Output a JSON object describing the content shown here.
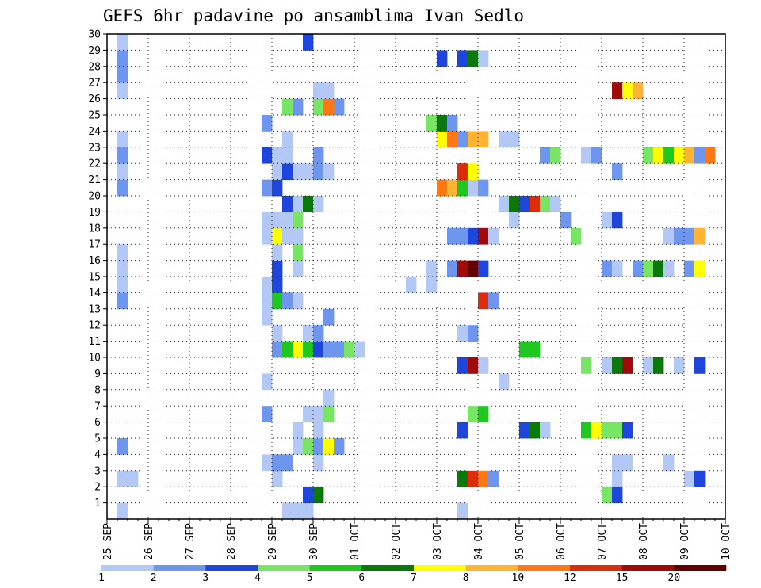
{
  "chart_data": {
    "type": "heatmap",
    "title": "GEFS 6hr padavine po ansamblima Ivan Sedlo",
    "xlabel": "",
    "ylabel": "",
    "x_ticks": [
      "25 SEP",
      "26 SEP",
      "27 SEP",
      "28 SEP",
      "29 SEP",
      "30 SEP",
      "01 OCT",
      "02 OCT",
      "03 OCT",
      "04 OCT",
      "05 OCT",
      "06 OCT",
      "07 OCT",
      "08 OCT",
      "09 OCT",
      "10 OCT"
    ],
    "steps_per_day": 4,
    "y_ticks": [
      1,
      2,
      3,
      4,
      5,
      6,
      7,
      8,
      9,
      10,
      11,
      12,
      13,
      14,
      15,
      16,
      17,
      18,
      19,
      20,
      21,
      22,
      23,
      24,
      25,
      26,
      27,
      28,
      29,
      30
    ],
    "x_range": [
      "25 SEP 00Z",
      "10 OCT 00Z"
    ],
    "y_range": [
      0,
      30
    ],
    "grid": "dotted",
    "legend_position": "bottom",
    "colorbar": {
      "colors": [
        "#b4c8f5",
        "#6e96ee",
        "#1e46dc",
        "#78e664",
        "#1ec81e",
        "#0a780a",
        "#ffff00",
        "#ffb432",
        "#ff7814",
        "#dc2d0a",
        "#a00a0a",
        "#640000"
      ],
      "labels": [
        "1",
        "2",
        "3",
        "4",
        "5",
        "6",
        "7",
        "8",
        "10",
        "12",
        "15",
        "20"
      ]
    },
    "cells": [
      {
        "member": 0,
        "step": 1,
        "cat": 1
      },
      {
        "member": 0,
        "step": 17,
        "cat": 1
      },
      {
        "member": 0,
        "step": 18,
        "cat": 1
      },
      {
        "member": 0,
        "step": 19,
        "cat": 1
      },
      {
        "member": 0,
        "step": 34,
        "cat": 1
      },
      {
        "member": 1,
        "step": 19,
        "cat": 3
      },
      {
        "member": 1,
        "step": 20,
        "cat": 6
      },
      {
        "member": 1,
        "step": 48,
        "cat": 4
      },
      {
        "member": 1,
        "step": 49,
        "cat": 3
      },
      {
        "member": 2,
        "step": 1,
        "cat": 1
      },
      {
        "member": 2,
        "step": 2,
        "cat": 1
      },
      {
        "member": 2,
        "step": 16,
        "cat": 1
      },
      {
        "member": 2,
        "step": 34,
        "cat": 6
      },
      {
        "member": 2,
        "step": 35,
        "cat": 10
      },
      {
        "member": 2,
        "step": 36,
        "cat": 9
      },
      {
        "member": 2,
        "step": 37,
        "cat": 2
      },
      {
        "member": 2,
        "step": 49,
        "cat": 1
      },
      {
        "member": 2,
        "step": 56,
        "cat": 1
      },
      {
        "member": 2,
        "step": 57,
        "cat": 3
      },
      {
        "member": 3,
        "step": 15,
        "cat": 1
      },
      {
        "member": 3,
        "step": 16,
        "cat": 2
      },
      {
        "member": 3,
        "step": 17,
        "cat": 2
      },
      {
        "member": 3,
        "step": 20,
        "cat": 1
      },
      {
        "member": 3,
        "step": 49,
        "cat": 1
      },
      {
        "member": 3,
        "step": 50,
        "cat": 1
      },
      {
        "member": 3,
        "step": 54,
        "cat": 1
      },
      {
        "member": 4,
        "step": 1,
        "cat": 2
      },
      {
        "member": 4,
        "step": 18,
        "cat": 1
      },
      {
        "member": 4,
        "step": 19,
        "cat": 4
      },
      {
        "member": 4,
        "step": 20,
        "cat": 2
      },
      {
        "member": 4,
        "step": 21,
        "cat": 7
      },
      {
        "member": 4,
        "step": 22,
        "cat": 2
      },
      {
        "member": 5,
        "step": 18,
        "cat": 1
      },
      {
        "member": 5,
        "step": 20,
        "cat": 1
      },
      {
        "member": 5,
        "step": 34,
        "cat": 3
      },
      {
        "member": 5,
        "step": 40,
        "cat": 3
      },
      {
        "member": 5,
        "step": 41,
        "cat": 6
      },
      {
        "member": 5,
        "step": 42,
        "cat": 1
      },
      {
        "member": 5,
        "step": 46,
        "cat": 5
      },
      {
        "member": 5,
        "step": 47,
        "cat": 7
      },
      {
        "member": 5,
        "step": 48,
        "cat": 4
      },
      {
        "member": 5,
        "step": 49,
        "cat": 4
      },
      {
        "member": 5,
        "step": 50,
        "cat": 3
      },
      {
        "member": 6,
        "step": 15,
        "cat": 2
      },
      {
        "member": 6,
        "step": 19,
        "cat": 1
      },
      {
        "member": 6,
        "step": 20,
        "cat": 1
      },
      {
        "member": 6,
        "step": 21,
        "cat": 4
      },
      {
        "member": 6,
        "step": 35,
        "cat": 4
      },
      {
        "member": 6,
        "step": 36,
        "cat": 5
      },
      {
        "member": 7,
        "step": 21,
        "cat": 1
      },
      {
        "member": 8,
        "step": 15,
        "cat": 1
      },
      {
        "member": 8,
        "step": 38,
        "cat": 1
      },
      {
        "member": 9,
        "step": 34,
        "cat": 3
      },
      {
        "member": 9,
        "step": 35,
        "cat": 11
      },
      {
        "member": 9,
        "step": 36,
        "cat": 1
      },
      {
        "member": 9,
        "step": 46,
        "cat": 4
      },
      {
        "member": 9,
        "step": 48,
        "cat": 1
      },
      {
        "member": 9,
        "step": 49,
        "cat": 6
      },
      {
        "member": 9,
        "step": 50,
        "cat": 11
      },
      {
        "member": 9,
        "step": 52,
        "cat": 1
      },
      {
        "member": 9,
        "step": 53,
        "cat": 6
      },
      {
        "member": 9,
        "step": 55,
        "cat": 1
      },
      {
        "member": 9,
        "step": 57,
        "cat": 3
      },
      {
        "member": 10,
        "step": 16,
        "cat": 2
      },
      {
        "member": 10,
        "step": 17,
        "cat": 5
      },
      {
        "member": 10,
        "step": 18,
        "cat": 7
      },
      {
        "member": 10,
        "step": 19,
        "cat": 5
      },
      {
        "member": 10,
        "step": 20,
        "cat": 3
      },
      {
        "member": 10,
        "step": 21,
        "cat": 2
      },
      {
        "member": 10,
        "step": 22,
        "cat": 2
      },
      {
        "member": 10,
        "step": 23,
        "cat": 4
      },
      {
        "member": 10,
        "step": 24,
        "cat": 1
      },
      {
        "member": 10,
        "step": 40,
        "cat": 5
      },
      {
        "member": 10,
        "step": 41,
        "cat": 5
      },
      {
        "member": 11,
        "step": 16,
        "cat": 1
      },
      {
        "member": 11,
        "step": 19,
        "cat": 1
      },
      {
        "member": 11,
        "step": 20,
        "cat": 2
      },
      {
        "member": 11,
        "step": 34,
        "cat": 1
      },
      {
        "member": 11,
        "step": 35,
        "cat": 2
      },
      {
        "member": 12,
        "step": 15,
        "cat": 1
      },
      {
        "member": 12,
        "step": 21,
        "cat": 2
      },
      {
        "member": 13,
        "step": 1,
        "cat": 2
      },
      {
        "member": 13,
        "step": 15,
        "cat": 1
      },
      {
        "member": 13,
        "step": 16,
        "cat": 5
      },
      {
        "member": 13,
        "step": 17,
        "cat": 2
      },
      {
        "member": 13,
        "step": 18,
        "cat": 1
      },
      {
        "member": 13,
        "step": 36,
        "cat": 10
      },
      {
        "member": 13,
        "step": 37,
        "cat": 2
      },
      {
        "member": 14,
        "step": 1,
        "cat": 1
      },
      {
        "member": 14,
        "step": 15,
        "cat": 1
      },
      {
        "member": 14,
        "step": 16,
        "cat": 3
      },
      {
        "member": 14,
        "step": 29,
        "cat": 1
      },
      {
        "member": 14,
        "step": 31,
        "cat": 1
      },
      {
        "member": 15,
        "step": 1,
        "cat": 1
      },
      {
        "member": 15,
        "step": 16,
        "cat": 3
      },
      {
        "member": 15,
        "step": 18,
        "cat": 1
      },
      {
        "member": 15,
        "step": 31,
        "cat": 1
      },
      {
        "member": 15,
        "step": 33,
        "cat": 2
      },
      {
        "member": 15,
        "step": 34,
        "cat": 11
      },
      {
        "member": 15,
        "step": 35,
        "cat": 12
      },
      {
        "member": 15,
        "step": 36,
        "cat": 3
      },
      {
        "member": 15,
        "step": 48,
        "cat": 2
      },
      {
        "member": 15,
        "step": 49,
        "cat": 1
      },
      {
        "member": 15,
        "step": 51,
        "cat": 2
      },
      {
        "member": 15,
        "step": 52,
        "cat": 4
      },
      {
        "member": 15,
        "step": 53,
        "cat": 6
      },
      {
        "member": 15,
        "step": 54,
        "cat": 1
      },
      {
        "member": 15,
        "step": 56,
        "cat": 2
      },
      {
        "member": 15,
        "step": 57,
        "cat": 7
      },
      {
        "member": 16,
        "step": 1,
        "cat": 1
      },
      {
        "member": 16,
        "step": 16,
        "cat": 1
      },
      {
        "member": 16,
        "step": 18,
        "cat": 4
      },
      {
        "member": 17,
        "step": 15,
        "cat": 1
      },
      {
        "member": 17,
        "step": 16,
        "cat": 7
      },
      {
        "member": 17,
        "step": 17,
        "cat": 1
      },
      {
        "member": 17,
        "step": 18,
        "cat": 1
      },
      {
        "member": 17,
        "step": 33,
        "cat": 2
      },
      {
        "member": 17,
        "step": 34,
        "cat": 2
      },
      {
        "member": 17,
        "step": 35,
        "cat": 3
      },
      {
        "member": 17,
        "step": 36,
        "cat": 11
      },
      {
        "member": 17,
        "step": 37,
        "cat": 1
      },
      {
        "member": 17,
        "step": 45,
        "cat": 4
      },
      {
        "member": 17,
        "step": 54,
        "cat": 1
      },
      {
        "member": 17,
        "step": 55,
        "cat": 2
      },
      {
        "member": 17,
        "step": 56,
        "cat": 2
      },
      {
        "member": 17,
        "step": 57,
        "cat": 8
      },
      {
        "member": 18,
        "step": 15,
        "cat": 1
      },
      {
        "member": 18,
        "step": 16,
        "cat": 1
      },
      {
        "member": 18,
        "step": 17,
        "cat": 1
      },
      {
        "member": 18,
        "step": 18,
        "cat": 4
      },
      {
        "member": 18,
        "step": 39,
        "cat": 1
      },
      {
        "member": 18,
        "step": 44,
        "cat": 2
      },
      {
        "member": 18,
        "step": 48,
        "cat": 1
      },
      {
        "member": 18,
        "step": 49,
        "cat": 3
      },
      {
        "member": 19,
        "step": 17,
        "cat": 3
      },
      {
        "member": 19,
        "step": 18,
        "cat": 1
      },
      {
        "member": 19,
        "step": 19,
        "cat": 6
      },
      {
        "member": 19,
        "step": 20,
        "cat": 1
      },
      {
        "member": 19,
        "step": 38,
        "cat": 1
      },
      {
        "member": 19,
        "step": 39,
        "cat": 6
      },
      {
        "member": 19,
        "step": 40,
        "cat": 3
      },
      {
        "member": 19,
        "step": 41,
        "cat": 10
      },
      {
        "member": 19,
        "step": 42,
        "cat": 4
      },
      {
        "member": 19,
        "step": 43,
        "cat": 1
      },
      {
        "member": 20,
        "step": 1,
        "cat": 2
      },
      {
        "member": 20,
        "step": 15,
        "cat": 2
      },
      {
        "member": 20,
        "step": 16,
        "cat": 3
      },
      {
        "member": 20,
        "step": 32,
        "cat": 9
      },
      {
        "member": 20,
        "step": 33,
        "cat": 8
      },
      {
        "member": 20,
        "step": 34,
        "cat": 5
      },
      {
        "member": 20,
        "step": 35,
        "cat": 1
      },
      {
        "member": 20,
        "step": 36,
        "cat": 2
      },
      {
        "member": 21,
        "step": 1,
        "cat": 1
      },
      {
        "member": 21,
        "step": 16,
        "cat": 1
      },
      {
        "member": 21,
        "step": 17,
        "cat": 3
      },
      {
        "member": 21,
        "step": 18,
        "cat": 1
      },
      {
        "member": 21,
        "step": 19,
        "cat": 1
      },
      {
        "member": 21,
        "step": 20,
        "cat": 2
      },
      {
        "member": 21,
        "step": 21,
        "cat": 1
      },
      {
        "member": 21,
        "step": 34,
        "cat": 10
      },
      {
        "member": 21,
        "step": 35,
        "cat": 7
      },
      {
        "member": 21,
        "step": 49,
        "cat": 2
      },
      {
        "member": 22,
        "step": 1,
        "cat": 2
      },
      {
        "member": 22,
        "step": 15,
        "cat": 3
      },
      {
        "member": 22,
        "step": 16,
        "cat": 1
      },
      {
        "member": 22,
        "step": 17,
        "cat": 1
      },
      {
        "member": 22,
        "step": 20,
        "cat": 2
      },
      {
        "member": 22,
        "step": 42,
        "cat": 2
      },
      {
        "member": 22,
        "step": 43,
        "cat": 4
      },
      {
        "member": 22,
        "step": 46,
        "cat": 1
      },
      {
        "member": 22,
        "step": 47,
        "cat": 2
      },
      {
        "member": 22,
        "step": 52,
        "cat": 4
      },
      {
        "member": 22,
        "step": 53,
        "cat": 7
      },
      {
        "member": 22,
        "step": 54,
        "cat": 5
      },
      {
        "member": 22,
        "step": 55,
        "cat": 7
      },
      {
        "member": 22,
        "step": 56,
        "cat": 8
      },
      {
        "member": 22,
        "step": 57,
        "cat": 2
      },
      {
        "member": 22,
        "step": 58,
        "cat": 9
      },
      {
        "member": 23,
        "step": 1,
        "cat": 1
      },
      {
        "member": 23,
        "step": 17,
        "cat": 1
      },
      {
        "member": 23,
        "step": 32,
        "cat": 7
      },
      {
        "member": 23,
        "step": 33,
        "cat": 9
      },
      {
        "member": 23,
        "step": 34,
        "cat": 2
      },
      {
        "member": 23,
        "step": 35,
        "cat": 8
      },
      {
        "member": 23,
        "step": 36,
        "cat": 8
      },
      {
        "member": 23,
        "step": 38,
        "cat": 1
      },
      {
        "member": 23,
        "step": 39,
        "cat": 1
      },
      {
        "member": 24,
        "step": 15,
        "cat": 2
      },
      {
        "member": 24,
        "step": 31,
        "cat": 4
      },
      {
        "member": 24,
        "step": 32,
        "cat": 6
      },
      {
        "member": 24,
        "step": 33,
        "cat": 2
      },
      {
        "member": 25,
        "step": 17,
        "cat": 4
      },
      {
        "member": 25,
        "step": 18,
        "cat": 2
      },
      {
        "member": 25,
        "step": 20,
        "cat": 4
      },
      {
        "member": 25,
        "step": 21,
        "cat": 9
      },
      {
        "member": 25,
        "step": 22,
        "cat": 2
      },
      {
        "member": 26,
        "step": 1,
        "cat": 1
      },
      {
        "member": 26,
        "step": 20,
        "cat": 1
      },
      {
        "member": 26,
        "step": 21,
        "cat": 1
      },
      {
        "member": 26,
        "step": 49,
        "cat": 11
      },
      {
        "member": 26,
        "step": 50,
        "cat": 7
      },
      {
        "member": 26,
        "step": 51,
        "cat": 8
      },
      {
        "member": 27,
        "step": 1,
        "cat": 2
      },
      {
        "member": 28,
        "step": 1,
        "cat": 2
      },
      {
        "member": 28,
        "step": 32,
        "cat": 3
      },
      {
        "member": 28,
        "step": 34,
        "cat": 3
      },
      {
        "member": 28,
        "step": 35,
        "cat": 6
      },
      {
        "member": 28,
        "step": 36,
        "cat": 1
      },
      {
        "member": 29,
        "step": 1,
        "cat": 1
      },
      {
        "member": 29,
        "step": 19,
        "cat": 3
      }
    ]
  }
}
